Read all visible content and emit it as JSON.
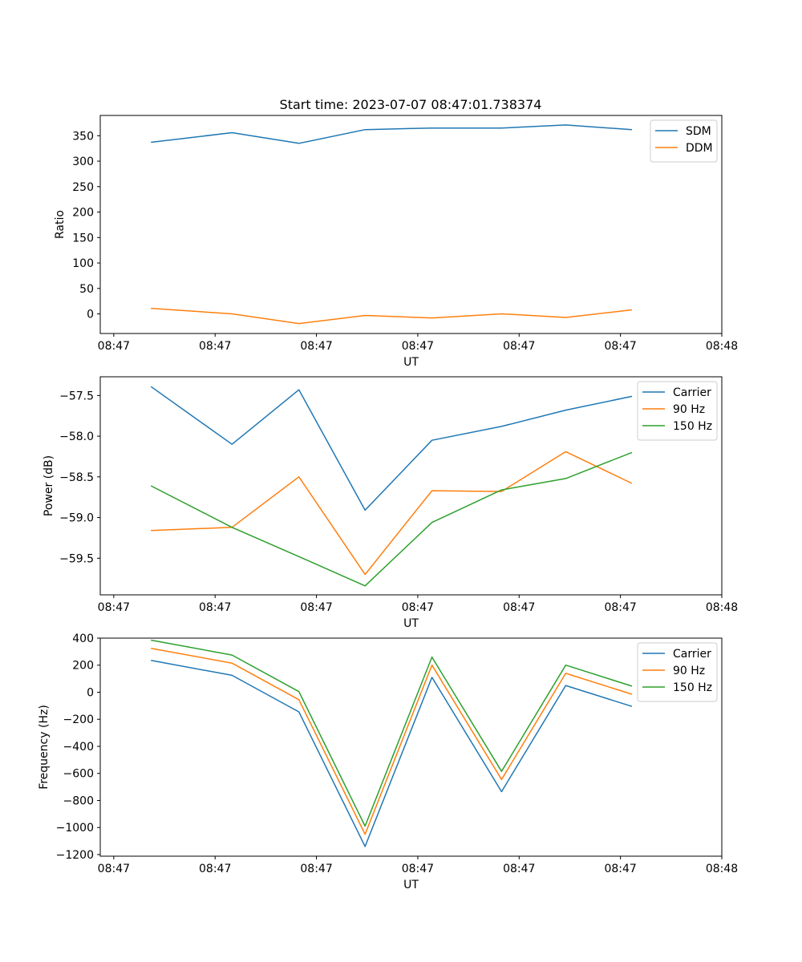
{
  "figure": {
    "title": "Start time: 2023-07-07 08:47:01.738374"
  },
  "colors": {
    "blue": "#1f77b4",
    "orange": "#ff7f0e",
    "green": "#2ca02c",
    "axis": "#000000",
    "background": "#ffffff"
  },
  "chart_data": [
    {
      "type": "line",
      "ylabel": "Ratio",
      "xlabel": "UT",
      "legend_position": "upper-right",
      "xlim": [
        -0.2,
        9.0
      ],
      "ylim": [
        -38.5,
        389.8
      ],
      "x": [
        0.55,
        1.75,
        2.74,
        3.72,
        4.71,
        5.74,
        6.69,
        7.67
      ],
      "x_ticks": [
        {
          "pos": 0,
          "label": "08:47"
        },
        {
          "pos": 1.5,
          "label": "08:47"
        },
        {
          "pos": 3,
          "label": "08:47"
        },
        {
          "pos": 4.5,
          "label": "08:47"
        },
        {
          "pos": 6,
          "label": "08:47"
        },
        {
          "pos": 7.5,
          "label": "08:47"
        },
        {
          "pos": 9,
          "label": "08:48"
        }
      ],
      "y_ticks": [
        0,
        50,
        100,
        150,
        200,
        250,
        300,
        350
      ],
      "y_tick_labels": [
        "0",
        "50",
        "100",
        "150",
        "200",
        "250",
        "300",
        "350"
      ],
      "series": [
        {
          "name": "SDM",
          "color": "#1f77b4",
          "values": [
            337,
            356,
            335,
            362,
            365,
            365,
            371,
            362
          ]
        },
        {
          "name": "DDM",
          "color": "#ff7f0e",
          "values": [
            11,
            0,
            -19,
            -3,
            -8,
            0,
            -7,
            8
          ]
        }
      ]
    },
    {
      "type": "line",
      "ylabel": "Power (dB)",
      "xlabel": "UT",
      "legend_position": "upper-right",
      "xlim": [
        -0.2,
        9.0
      ],
      "ylim": [
        -59.95,
        -57.27
      ],
      "x": [
        0.55,
        1.75,
        2.74,
        3.72,
        4.71,
        5.74,
        6.69,
        7.67
      ],
      "x_ticks": [
        {
          "pos": 0,
          "label": "08:47"
        },
        {
          "pos": 1.5,
          "label": "08:47"
        },
        {
          "pos": 3,
          "label": "08:47"
        },
        {
          "pos": 4.5,
          "label": "08:47"
        },
        {
          "pos": 6,
          "label": "08:47"
        },
        {
          "pos": 7.5,
          "label": "08:47"
        },
        {
          "pos": 9,
          "label": "08:48"
        }
      ],
      "y_ticks": [
        -59.5,
        -59.0,
        -58.5,
        -58.0,
        -57.5
      ],
      "y_tick_labels": [
        "−59.5",
        "−59.0",
        "−58.5",
        "−58.0",
        "−57.5"
      ],
      "series": [
        {
          "name": "Carrier",
          "color": "#1f77b4",
          "values": [
            -57.39,
            -58.1,
            -57.43,
            -58.91,
            -58.05,
            -57.88,
            -57.68,
            -57.51
          ]
        },
        {
          "name": "90 Hz",
          "color": "#ff7f0e",
          "values": [
            -59.16,
            -59.12,
            -58.5,
            -59.7,
            -58.67,
            -58.68,
            -58.19,
            -58.58
          ]
        },
        {
          "name": "150 Hz",
          "color": "#2ca02c",
          "values": [
            -58.61,
            -59.12,
            -59.48,
            -59.84,
            -59.06,
            -58.66,
            -58.52,
            -58.2
          ]
        }
      ]
    },
    {
      "type": "line",
      "ylabel": "Frequency (Hz)",
      "xlabel": "UT",
      "legend_position": "upper-right",
      "xlim": [
        -0.2,
        9.0
      ],
      "ylim": [
        -1212,
        400
      ],
      "x": [
        0.55,
        1.75,
        2.74,
        3.72,
        4.71,
        5.74,
        6.69,
        7.67
      ],
      "x_ticks": [
        {
          "pos": 0,
          "label": "08:47"
        },
        {
          "pos": 1.5,
          "label": "08:47"
        },
        {
          "pos": 3,
          "label": "08:47"
        },
        {
          "pos": 4.5,
          "label": "08:47"
        },
        {
          "pos": 6,
          "label": "08:47"
        },
        {
          "pos": 7.5,
          "label": "08:47"
        },
        {
          "pos": 9,
          "label": "08:48"
        }
      ],
      "y_ticks": [
        -1200,
        -1000,
        -800,
        -600,
        -400,
        -200,
        0,
        200,
        400
      ],
      "y_tick_labels": [
        "−1200",
        "−1000",
        "−800",
        "−600",
        "−400",
        "−200",
        "0",
        "200",
        "400"
      ],
      "series": [
        {
          "name": "Carrier",
          "color": "#1f77b4",
          "values": [
            235,
            125,
            -145,
            -1140,
            110,
            -735,
            50,
            -105
          ]
        },
        {
          "name": "90 Hz",
          "color": "#ff7f0e",
          "values": [
            325,
            215,
            -55,
            -1050,
            200,
            -645,
            140,
            -15
          ]
        },
        {
          "name": "150 Hz",
          "color": "#2ca02c",
          "values": [
            385,
            275,
            5,
            -990,
            260,
            -585,
            200,
            45
          ]
        }
      ]
    }
  ]
}
